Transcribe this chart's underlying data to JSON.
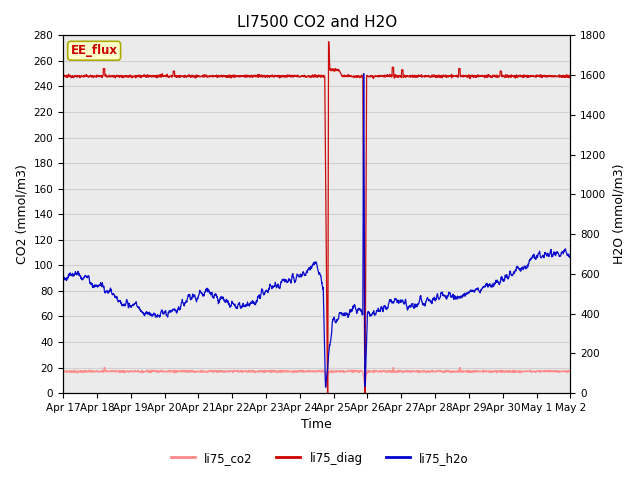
{
  "title": "LI7500 CO2 and H2O",
  "xlabel": "Time",
  "ylabel_left": "CO2 (mmol/m3)",
  "ylabel_right": "H2O (mmol/m3)",
  "ylim_left": [
    0,
    280
  ],
  "ylim_right": [
    0,
    1800
  ],
  "xtick_labels": [
    "Apr 17",
    "Apr 18",
    "Apr 19",
    "Apr 20",
    "Apr 21",
    "Apr 22",
    "Apr 23",
    "Apr 24",
    "Apr 25",
    "Apr 26",
    "Apr 27",
    "Apr 28",
    "Apr 29",
    "Apr 30",
    "May 1",
    "May 2"
  ],
  "legend_labels": [
    "li75_co2",
    "li75_diag",
    "li75_h2o"
  ],
  "legend_colors": [
    "#ff8888",
    "#cc0000",
    "#0000cc"
  ],
  "annotation_text": "EE_flux",
  "annotation_bg": "#ffffcc",
  "annotation_border": "#aaaa00",
  "grid_color": "#d0d0d0",
  "bg_color": "#ebebeb",
  "diag_color": "#cc0000",
  "co2_color": "#ff8888",
  "h2o_color": "#0000cc",
  "title_fontsize": 11,
  "tick_fontsize": 7.5,
  "axis_label_fontsize": 9
}
